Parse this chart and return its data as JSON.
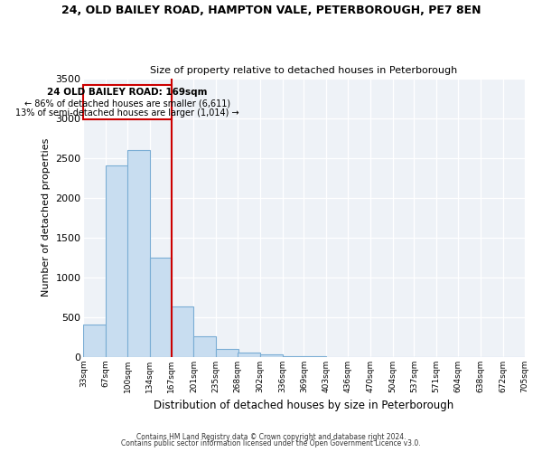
{
  "title": "24, OLD BAILEY ROAD, HAMPTON VALE, PETERBOROUGH, PE7 8EN",
  "subtitle": "Size of property relative to detached houses in Peterborough",
  "xlabel": "Distribution of detached houses by size in Peterborough",
  "ylabel": "Number of detached properties",
  "bar_color": "#c8ddf0",
  "bar_edge_color": "#7aadd4",
  "bins": [
    33,
    67,
    100,
    134,
    167,
    201,
    235,
    268,
    302,
    336,
    369,
    403,
    436,
    470,
    504,
    537,
    571,
    604,
    638,
    672,
    705
  ],
  "counts": [
    400,
    2400,
    2600,
    1250,
    630,
    260,
    100,
    50,
    30,
    10,
    5,
    0,
    0,
    0,
    0,
    0,
    0,
    0,
    0,
    0
  ],
  "tick_labels": [
    "33sqm",
    "67sqm",
    "100sqm",
    "134sqm",
    "167sqm",
    "201sqm",
    "235sqm",
    "268sqm",
    "302sqm",
    "336sqm",
    "369sqm",
    "403sqm",
    "436sqm",
    "470sqm",
    "504sqm",
    "537sqm",
    "571sqm",
    "604sqm",
    "638sqm",
    "672sqm",
    "705sqm"
  ],
  "ylim": [
    0,
    3500
  ],
  "yticks": [
    0,
    500,
    1000,
    1500,
    2000,
    2500,
    3000,
    3500
  ],
  "vline_x": 167,
  "marker_label": "24 OLD BAILEY ROAD: 169sqm",
  "annotation_line1": "← 86% of detached houses are smaller (6,611)",
  "annotation_line2": "13% of semi-detached houses are larger (1,014) →",
  "box_color": "#cc0000",
  "footer1": "Contains HM Land Registry data © Crown copyright and database right 2024.",
  "footer2": "Contains public sector information licensed under the Open Government Licence v3.0.",
  "bg_color": "#eef2f7"
}
